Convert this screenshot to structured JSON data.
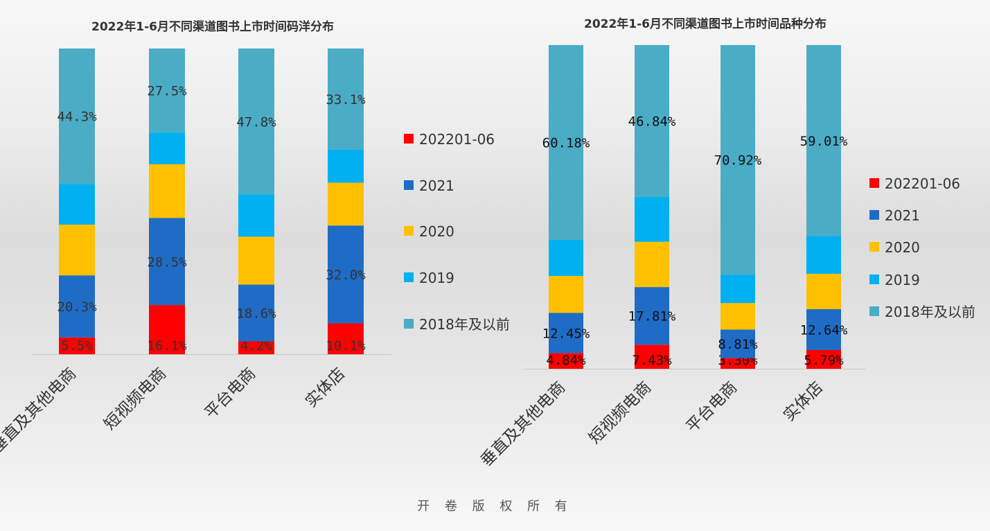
{
  "footer": "开 卷 版 权 所 有",
  "colors": {
    "202201-06": "#ff0000",
    "2021": "#1f6cc6",
    "2020": "#ffc000",
    "2019": "#00b0f0",
    "2018年及以前": "#4bacc6"
  },
  "chart_data": [
    {
      "type": "bar",
      "stacked": true,
      "title": "2022年1-6月不同渠道图书上市时间码洋分布",
      "categories": [
        "垂直及其他电商",
        "短视频电商",
        "平台电商",
        "实体店"
      ],
      "series": [
        {
          "name": "202201-06",
          "values": [
            5.5,
            16.1,
            4.2,
            10.1
          ],
          "labels": [
            "5.5%",
            "16.1%",
            "4.2%",
            "10.1%"
          ]
        },
        {
          "name": "2021",
          "values": [
            20.3,
            28.5,
            18.6,
            32.0
          ],
          "labels": [
            "20.3%",
            "28.5%",
            "18.6%",
            "32.0%"
          ]
        },
        {
          "name": "2020",
          "values": [
            16.6,
            17.6,
            15.7,
            14.0
          ],
          "labels": [
            "",
            "",
            "",
            ""
          ]
        },
        {
          "name": "2019",
          "values": [
            13.3,
            10.4,
            13.8,
            10.8
          ],
          "labels": [
            "",
            "",
            "",
            ""
          ]
        },
        {
          "name": "2018年及以前",
          "values": [
            44.3,
            27.5,
            47.8,
            33.1
          ],
          "labels": [
            "44.3%",
            "27.5%",
            "47.8%",
            "33.1%"
          ]
        }
      ],
      "ylim": [
        0,
        100
      ],
      "legend": "right",
      "grid": false
    },
    {
      "type": "bar",
      "stacked": true,
      "title": "2022年1-6月不同渠道图书上市时间品种分布",
      "categories": [
        "垂直及其他电商",
        "短视频电商",
        "平台电商",
        "实体店"
      ],
      "series": [
        {
          "name": "202201-06",
          "values": [
            4.84,
            7.43,
            3.3,
            5.79
          ],
          "labels": [
            "4.84%",
            "7.43%",
            "3.30%",
            "5.79%"
          ]
        },
        {
          "name": "2021",
          "values": [
            12.45,
            17.81,
            8.81,
            12.64
          ],
          "labels": [
            "12.45%",
            "17.81%",
            "8.81%",
            "12.64%"
          ]
        },
        {
          "name": "2020",
          "values": [
            11.4,
            14.0,
            8.2,
            10.9
          ],
          "labels": [
            "",
            "",
            "",
            ""
          ]
        },
        {
          "name": "2019",
          "values": [
            11.13,
            13.92,
            8.77,
            11.66
          ],
          "labels": [
            "",
            "",
            "",
            ""
          ]
        },
        {
          "name": "2018年及以前",
          "values": [
            60.18,
            46.84,
            70.92,
            59.01
          ],
          "labels": [
            "60.18%",
            "46.84%",
            "70.92%",
            "59.01%"
          ]
        }
      ],
      "ylim": [
        0,
        100
      ],
      "legend": "right",
      "grid": false
    }
  ]
}
